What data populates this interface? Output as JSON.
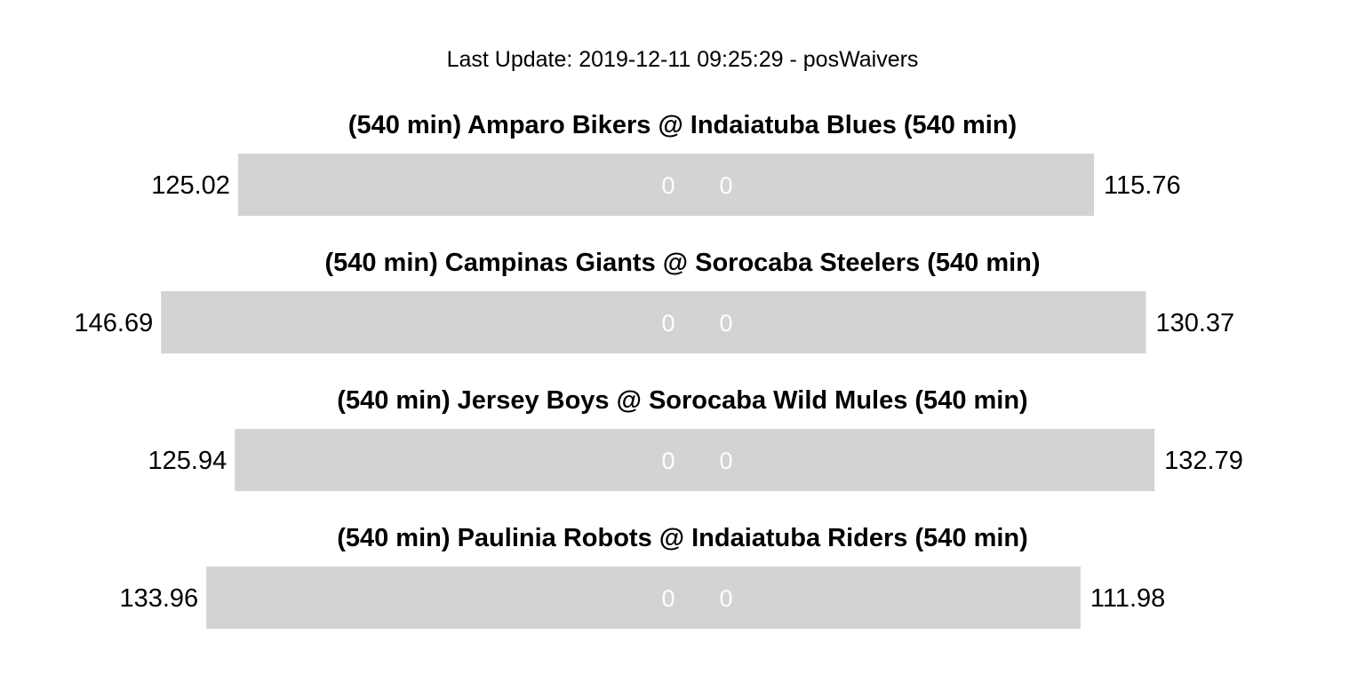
{
  "update_text": "Last Update: 2019-12-11 09:25:29 - posWaivers",
  "colors": {
    "bar": "#d3d3d3",
    "bar_text": "#ffffff",
    "text": "#000000",
    "background": "#ffffff"
  },
  "chart_data": {
    "type": "bar",
    "orientation": "horizontal-diverging",
    "x_domain": [
      -150,
      150
    ],
    "matchups": [
      {
        "title": "(540 min) Amparo Bikers @ Indaiatuba Blues (540 min)",
        "away_score": 125.02,
        "home_score": 115.76,
        "away_score_label": "125.02",
        "home_score_label": "115.76",
        "away_inner": "0",
        "home_inner": "0"
      },
      {
        "title": "(540 min) Campinas Giants @ Sorocaba Steelers (540 min)",
        "away_score": 146.69,
        "home_score": 130.37,
        "away_score_label": "146.69",
        "home_score_label": "130.37",
        "away_inner": "0",
        "home_inner": "0"
      },
      {
        "title": "(540 min) Jersey Boys @ Sorocaba Wild Mules (540 min)",
        "away_score": 125.94,
        "home_score": 132.79,
        "away_score_label": "125.94",
        "home_score_label": "132.79",
        "away_inner": "0",
        "home_inner": "0"
      },
      {
        "title": "(540 min) Paulinia Robots @ Indaiatuba Riders (540 min)",
        "away_score": 133.96,
        "home_score": 111.98,
        "away_score_label": "133.96",
        "home_score_label": "111.98",
        "away_inner": "0",
        "home_inner": "0"
      }
    ]
  }
}
